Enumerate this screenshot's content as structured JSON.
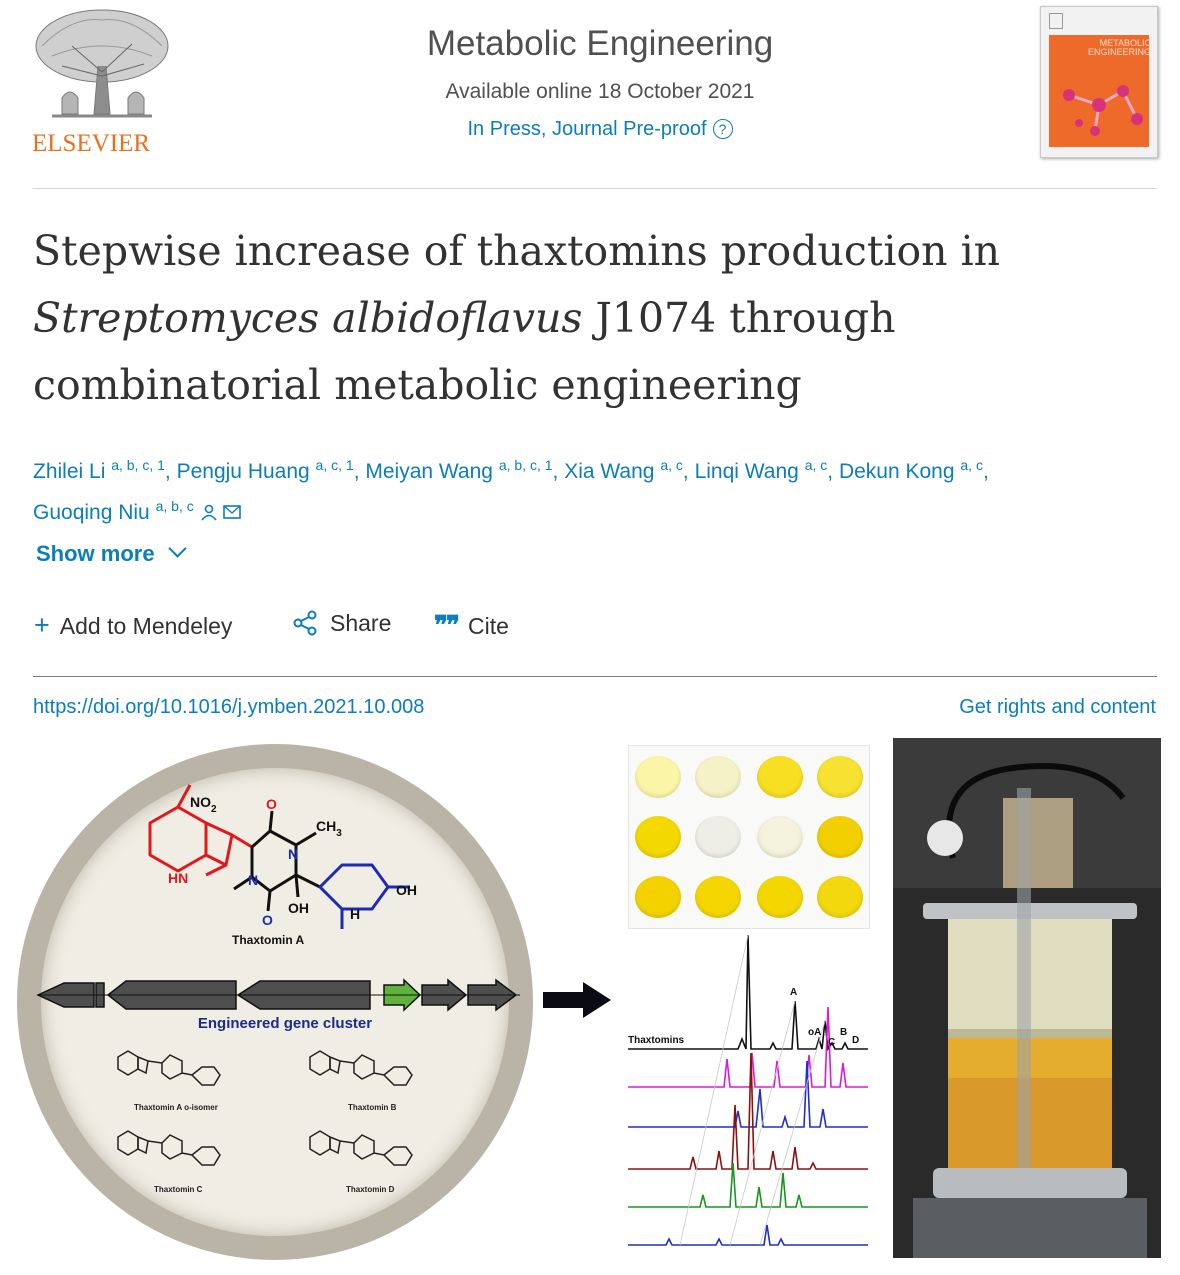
{
  "header": {
    "publisher_logo": "ELSEVIER",
    "journal_name": "Metabolic Engineering",
    "available_online": "Available online 18 October 2021",
    "status": "In Press, Journal Pre-proof",
    "help_icon": "question-circle-icon",
    "cover_text": "METABOLIC ENGINEERING"
  },
  "article": {
    "title_line1": "Stepwise increase of thaxtomins production in",
    "title_italic": "Streptomyces albidoflavus",
    "title_line2_rest": " J1074 through",
    "title_line3": "combinatorial metabolic engineering"
  },
  "authors": [
    {
      "name": "Zhilei Li",
      "aff": "a, b, c, 1",
      "sep": ", "
    },
    {
      "name": "Pengju Huang",
      "aff": "a, c, 1",
      "sep": ", "
    },
    {
      "name": "Meiyan Wang",
      "aff": "a, b, c, 1",
      "sep": ", "
    },
    {
      "name": "Xia Wang",
      "aff": "a, c",
      "sep": ", "
    },
    {
      "name": "Linqi Wang",
      "aff": "a, c",
      "sep": ", "
    },
    {
      "name": "Dekun Kong",
      "aff": "a, c",
      "sep": ","
    },
    {
      "name": "Guoqing Niu",
      "aff": "a, b, c",
      "sep": ""
    }
  ],
  "show_more": "Show more",
  "actions": {
    "mendeley": "Add to Mendeley",
    "share": "Share",
    "cite": "Cite"
  },
  "doi": "https://doi.org/10.1016/j.ymben.2021.10.008",
  "rights": "Get rights and content",
  "graphical_abstract": {
    "molecule_title": "Thaxtomin A",
    "no2": "NO",
    "no2_sub": "2",
    "ch3": "CH",
    "ch3_sub": "3",
    "n_label": "N",
    "o_label": "O",
    "oh_label": "OH",
    "hn_label": "HN",
    "h_label": "H",
    "gene_cluster": "Engineered gene cluster",
    "variants": [
      "Thaxtomin A o-isomer",
      "Thaxtomin B",
      "Thaxtomin C",
      "Thaxtomin D"
    ],
    "chromatogram_label": "Thaxtomins",
    "peak_labels": [
      "A",
      "oA",
      "C",
      "B",
      "D"
    ],
    "well_colors": [
      "#fbf5a8",
      "#f6f2c7",
      "#f7e021",
      "#f7e131",
      "#f3d900",
      "#eeeee6",
      "#f4f2dc",
      "#f2cf00",
      "#f4d200",
      "#f6d600",
      "#f4d700",
      "#f3d80e"
    ],
    "trace_colors": [
      "#111111",
      "#d81bd6",
      "#1e2ec8",
      "#8b1010",
      "#17951c",
      "#1e2ec8"
    ]
  }
}
